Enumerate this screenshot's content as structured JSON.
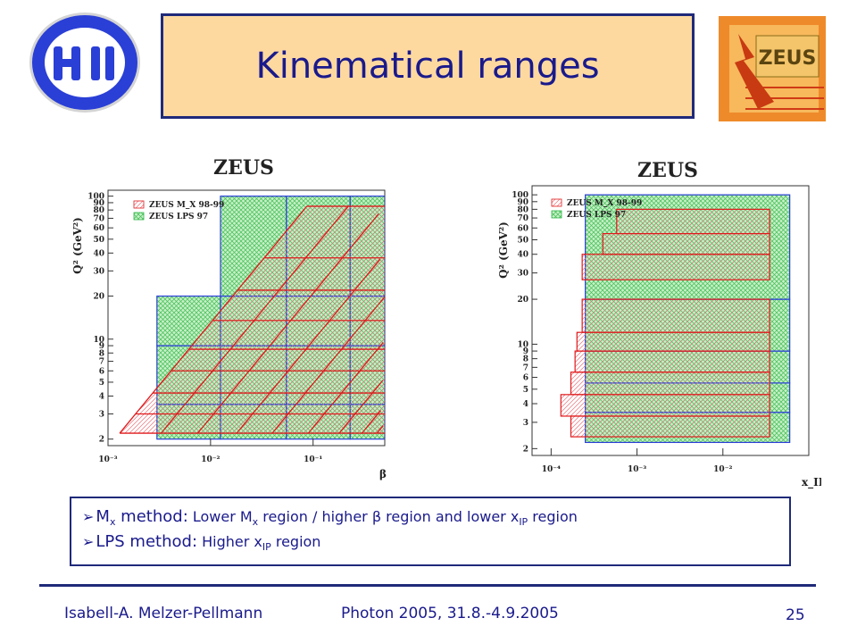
{
  "slide": {
    "title": "Kinematical ranges",
    "logo_left_text": "H1",
    "logo_right_text": "ZEUS"
  },
  "bullets": [
    {
      "head": "M",
      "head_sub": "x",
      "head_rest": " method:",
      "text_pre": " Lower M",
      "text_sub": "x",
      "text_mid": " region / higher ",
      "text_beta": "β",
      "text_mid2": " region and lower x",
      "text_sub2": "IP",
      "text_post": " region"
    },
    {
      "head": "LPS method:",
      "text_pre": " Higher x",
      "text_sub": "IP",
      "text_post": " region"
    }
  ],
  "footer": {
    "author": "Isabell-A. Melzer-Pellmann",
    "event": "Photon 2005, 31.8.-4.9.2005",
    "page": "25"
  },
  "colors": {
    "accent": "#1a1a8c",
    "title_bg": "#fdd9a0",
    "mx_color": "#e0191b",
    "lps_color": "#2fb84a",
    "lps_border": "#2a3fd6"
  },
  "chart_data": [
    {
      "type": "table",
      "title": "ZEUS",
      "xlabel": "β",
      "ylabel": "Q² (GeV²)",
      "x_log": true,
      "y_log": true,
      "xlim": [
        0.001,
        0.5
      ],
      "ylim": [
        1.8,
        110
      ],
      "x_ticks": [
        "10⁻³",
        "10⁻²",
        "10⁻¹"
      ],
      "y_ticks": [
        "2",
        "3",
        "4",
        "5",
        "6",
        "7",
        "8",
        "9",
        "10",
        "20",
        "30",
        "40",
        "50",
        "60",
        "70",
        "80",
        "90",
        "100"
      ],
      "legend": [
        "ZEUS M_X 98-99",
        "ZEUS LPS 97"
      ],
      "lps_x_edges": [
        0.003,
        0.0125,
        0.055,
        0.23,
        0.5
      ],
      "lps_q2_edges": [
        2,
        3.5,
        9,
        20,
        100
      ],
      "lps_q2_low_col_top": 20,
      "mx_q2_edges": [
        2.2,
        3,
        4.2,
        6,
        8.5,
        13.5,
        22,
        37,
        85
      ],
      "mx_beta_curves": [
        0.0013,
        0.0033,
        0.0075,
        0.018,
        0.04,
        0.09,
        0.18,
        0.3,
        0.42,
        0.48
      ],
      "mx_beta_max": 0.5
    },
    {
      "type": "table",
      "title": "ZEUS",
      "xlabel": "x_IP",
      "ylabel": "Q² (GeV²)",
      "x_log": true,
      "y_log": true,
      "xlim": [
        6e-05,
        0.1
      ],
      "ylim": [
        1.8,
        115
      ],
      "x_ticks": [
        "10⁻⁴",
        "10⁻³",
        "10⁻²"
      ],
      "y_ticks": [
        "2",
        "3",
        "4",
        "5",
        "6",
        "7",
        "8",
        "9",
        "10",
        "20",
        "30",
        "40",
        "50",
        "60",
        "70",
        "80",
        "90",
        "100"
      ],
      "legend": [
        "ZEUS M_X 98-99",
        "ZEUS LPS 97"
      ],
      "lps_x_range": [
        0.00025,
        0.06
      ],
      "lps_q2_edges": [
        2.2,
        3.5,
        5.5,
        9,
        20,
        100
      ],
      "mx_rows": [
        {
          "q2": [
            2.4,
            3.3
          ],
          "x": [
            0.00017,
            0.035
          ]
        },
        {
          "q2": [
            3.3,
            4.6
          ],
          "x": [
            0.00013,
            0.035
          ]
        },
        {
          "q2": [
            4.6,
            6.5
          ],
          "x": [
            0.00017,
            0.035
          ]
        },
        {
          "q2": [
            6.5,
            9
          ],
          "x": [
            0.00019,
            0.035
          ]
        },
        {
          "q2": [
            9,
            12
          ],
          "x": [
            0.0002,
            0.035
          ]
        },
        {
          "q2": [
            12,
            20
          ],
          "x": [
            0.00023,
            0.035
          ]
        },
        {
          "q2": [
            27,
            40
          ],
          "x": [
            0.00023,
            0.035
          ]
        },
        {
          "q2": [
            40,
            55
          ],
          "x": [
            0.0004,
            0.035
          ]
        },
        {
          "q2": [
            55,
            80
          ],
          "x": [
            0.00058,
            0.035
          ]
        }
      ]
    }
  ]
}
